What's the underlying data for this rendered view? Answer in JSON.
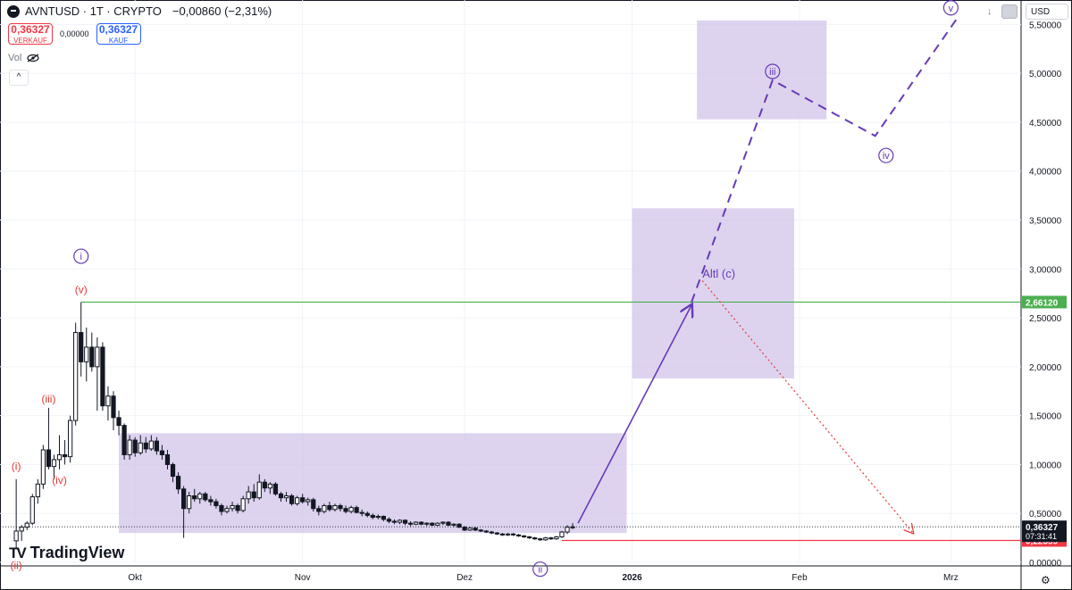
{
  "header": {
    "title": "AVNTUSD · 1T · CRYPTO",
    "change": "−0,00860 (−2,31%)",
    "sell_price": "0,36327",
    "sell_label": "VERKAUF",
    "spread": "0,00000",
    "buy_price": "0,36327",
    "buy_label": "KAUF",
    "vol_label": "Vol",
    "collapse_icon": "chevron-up-icon",
    "eye_icon": "eye-off-icon"
  },
  "toolbar": {
    "currency": "USD",
    "download_icon": "arrow-down-icon",
    "layout_icon": "square-icon",
    "settings_icon": "gear-icon"
  },
  "branding": {
    "logo_text": "TradingView"
  },
  "colors": {
    "up": "#131722",
    "down": "#131722",
    "box_fill": "#d1c4e9",
    "wave_primary": "#673ab7",
    "wave_red": "#e53935",
    "resistance": "#4caf50",
    "support": "#f23645"
  },
  "chart_data": {
    "type": "candlestick",
    "symbol": "AVNTUSD",
    "interval": "1T",
    "x_ticks": [
      "Okt",
      "Nov",
      "Dez",
      "2026",
      "Feb",
      "Mrz"
    ],
    "y_ticks": [
      "0,00000",
      "0,50000",
      "1,00000",
      "1,50000",
      "2,00000",
      "2,50000",
      "3,00000",
      "3,50000",
      "4,00000",
      "4,50000",
      "5,00000",
      "5,50000"
    ],
    "y_values": [
      0,
      0.5,
      1,
      1.5,
      2,
      2.5,
      3,
      3.5,
      4,
      4.5,
      5,
      5.5
    ],
    "ylim": [
      0,
      5.75
    ],
    "xlim": [
      "2025-09-06",
      "2026-03-14"
    ],
    "candles": [
      {
        "d": "2025-09-09",
        "o": 0.22,
        "h": 0.85,
        "l": 0.15,
        "c": 0.32
      },
      {
        "d": "2025-09-10",
        "o": 0.32,
        "h": 0.38,
        "l": 0.22,
        "c": 0.36
      },
      {
        "d": "2025-09-11",
        "o": 0.36,
        "h": 0.42,
        "l": 0.33,
        "c": 0.4
      },
      {
        "d": "2025-09-12",
        "o": 0.4,
        "h": 0.7,
        "l": 0.38,
        "c": 0.67
      },
      {
        "d": "2025-09-13",
        "o": 0.67,
        "h": 0.85,
        "l": 0.6,
        "c": 0.8
      },
      {
        "d": "2025-09-14",
        "o": 0.8,
        "h": 1.2,
        "l": 0.75,
        "c": 1.15
      },
      {
        "d": "2025-09-15",
        "o": 1.15,
        "h": 1.58,
        "l": 0.95,
        "c": 0.98
      },
      {
        "d": "2025-09-16",
        "o": 0.98,
        "h": 1.1,
        "l": 0.85,
        "c": 1.05
      },
      {
        "d": "2025-09-17",
        "o": 1.05,
        "h": 1.3,
        "l": 0.95,
        "c": 1.1
      },
      {
        "d": "2025-09-18",
        "o": 1.1,
        "h": 1.25,
        "l": 1.0,
        "c": 1.08
      },
      {
        "d": "2025-09-19",
        "o": 1.08,
        "h": 1.5,
        "l": 1.02,
        "c": 1.45
      },
      {
        "d": "2025-09-20",
        "o": 1.45,
        "h": 2.45,
        "l": 1.4,
        "c": 2.35
      },
      {
        "d": "2025-09-21",
        "o": 2.35,
        "h": 2.66,
        "l": 1.9,
        "c": 2.05
      },
      {
        "d": "2025-09-22",
        "o": 2.05,
        "h": 2.4,
        "l": 1.85,
        "c": 2.2
      },
      {
        "d": "2025-09-23",
        "o": 2.2,
        "h": 2.35,
        "l": 1.95,
        "c": 2.0
      },
      {
        "d": "2025-09-24",
        "o": 2.0,
        "h": 2.3,
        "l": 1.55,
        "c": 2.2
      },
      {
        "d": "2025-09-25",
        "o": 2.2,
        "h": 2.25,
        "l": 1.55,
        "c": 1.6
      },
      {
        "d": "2025-09-26",
        "o": 1.6,
        "h": 1.8,
        "l": 1.45,
        "c": 1.7
      },
      {
        "d": "2025-09-27",
        "o": 1.7,
        "h": 1.75,
        "l": 1.35,
        "c": 1.48
      },
      {
        "d": "2025-09-28",
        "o": 1.48,
        "h": 1.55,
        "l": 1.3,
        "c": 1.4
      },
      {
        "d": "2025-09-29",
        "o": 1.4,
        "h": 1.42,
        "l": 1.05,
        "c": 1.1
      },
      {
        "d": "2025-09-30",
        "o": 1.1,
        "h": 1.3,
        "l": 1.05,
        "c": 1.25
      },
      {
        "d": "2025-10-01",
        "o": 1.25,
        "h": 1.28,
        "l": 1.08,
        "c": 1.12
      },
      {
        "d": "2025-10-02",
        "o": 1.12,
        "h": 1.3,
        "l": 1.1,
        "c": 1.22
      },
      {
        "d": "2025-10-03",
        "o": 1.22,
        "h": 1.28,
        "l": 1.12,
        "c": 1.16
      },
      {
        "d": "2025-10-04",
        "o": 1.16,
        "h": 1.3,
        "l": 1.14,
        "c": 1.24
      },
      {
        "d": "2025-10-05",
        "o": 1.24,
        "h": 1.28,
        "l": 1.1,
        "c": 1.14
      },
      {
        "d": "2025-10-06",
        "o": 1.14,
        "h": 1.2,
        "l": 1.05,
        "c": 1.1
      },
      {
        "d": "2025-10-07",
        "o": 1.1,
        "h": 1.15,
        "l": 0.95,
        "c": 1.0
      },
      {
        "d": "2025-10-08",
        "o": 1.0,
        "h": 1.02,
        "l": 0.82,
        "c": 0.88
      },
      {
        "d": "2025-10-09",
        "o": 0.88,
        "h": 0.92,
        "l": 0.7,
        "c": 0.75
      },
      {
        "d": "2025-10-10",
        "o": 0.75,
        "h": 0.78,
        "l": 0.25,
        "c": 0.55
      },
      {
        "d": "2025-10-11",
        "o": 0.55,
        "h": 0.72,
        "l": 0.5,
        "c": 0.68
      },
      {
        "d": "2025-10-12",
        "o": 0.68,
        "h": 0.75,
        "l": 0.62,
        "c": 0.65
      },
      {
        "d": "2025-10-13",
        "o": 0.65,
        "h": 0.72,
        "l": 0.6,
        "c": 0.7
      },
      {
        "d": "2025-10-14",
        "o": 0.7,
        "h": 0.72,
        "l": 0.62,
        "c": 0.64
      },
      {
        "d": "2025-10-15",
        "o": 0.64,
        "h": 0.68,
        "l": 0.58,
        "c": 0.62
      },
      {
        "d": "2025-10-16",
        "o": 0.62,
        "h": 0.65,
        "l": 0.55,
        "c": 0.58
      },
      {
        "d": "2025-10-17",
        "o": 0.58,
        "h": 0.6,
        "l": 0.48,
        "c": 0.52
      },
      {
        "d": "2025-10-18",
        "o": 0.52,
        "h": 0.58,
        "l": 0.5,
        "c": 0.55
      },
      {
        "d": "2025-10-19",
        "o": 0.55,
        "h": 0.62,
        "l": 0.52,
        "c": 0.58
      },
      {
        "d": "2025-10-20",
        "o": 0.58,
        "h": 0.6,
        "l": 0.5,
        "c": 0.53
      },
      {
        "d": "2025-10-21",
        "o": 0.53,
        "h": 0.68,
        "l": 0.51,
        "c": 0.65
      },
      {
        "d": "2025-10-22",
        "o": 0.65,
        "h": 0.78,
        "l": 0.6,
        "c": 0.72
      },
      {
        "d": "2025-10-23",
        "o": 0.72,
        "h": 0.8,
        "l": 0.62,
        "c": 0.66
      },
      {
        "d": "2025-10-24",
        "o": 0.66,
        "h": 0.9,
        "l": 0.64,
        "c": 0.82
      },
      {
        "d": "2025-10-25",
        "o": 0.82,
        "h": 0.85,
        "l": 0.72,
        "c": 0.76
      },
      {
        "d": "2025-10-26",
        "o": 0.76,
        "h": 0.82,
        "l": 0.7,
        "c": 0.8
      },
      {
        "d": "2025-10-27",
        "o": 0.8,
        "h": 0.82,
        "l": 0.68,
        "c": 0.7
      },
      {
        "d": "2025-10-28",
        "o": 0.7,
        "h": 0.72,
        "l": 0.62,
        "c": 0.66
      },
      {
        "d": "2025-10-29",
        "o": 0.66,
        "h": 0.72,
        "l": 0.62,
        "c": 0.68
      },
      {
        "d": "2025-10-30",
        "o": 0.68,
        "h": 0.7,
        "l": 0.58,
        "c": 0.6
      },
      {
        "d": "2025-10-31",
        "o": 0.6,
        "h": 0.68,
        "l": 0.58,
        "c": 0.66
      },
      {
        "d": "2025-11-01",
        "o": 0.66,
        "h": 0.7,
        "l": 0.6,
        "c": 0.62
      },
      {
        "d": "2025-11-02",
        "o": 0.62,
        "h": 0.66,
        "l": 0.58,
        "c": 0.64
      },
      {
        "d": "2025-11-03",
        "o": 0.64,
        "h": 0.66,
        "l": 0.52,
        "c": 0.55
      },
      {
        "d": "2025-11-04",
        "o": 0.55,
        "h": 0.58,
        "l": 0.48,
        "c": 0.52
      },
      {
        "d": "2025-11-05",
        "o": 0.52,
        "h": 0.6,
        "l": 0.5,
        "c": 0.58
      },
      {
        "d": "2025-11-06",
        "o": 0.58,
        "h": 0.62,
        "l": 0.52,
        "c": 0.54
      },
      {
        "d": "2025-11-07",
        "o": 0.54,
        "h": 0.6,
        "l": 0.52,
        "c": 0.58
      },
      {
        "d": "2025-11-08",
        "o": 0.58,
        "h": 0.6,
        "l": 0.52,
        "c": 0.55
      },
      {
        "d": "2025-11-09",
        "o": 0.55,
        "h": 0.58,
        "l": 0.5,
        "c": 0.52
      },
      {
        "d": "2025-11-10",
        "o": 0.52,
        "h": 0.58,
        "l": 0.5,
        "c": 0.56
      },
      {
        "d": "2025-11-11",
        "o": 0.56,
        "h": 0.58,
        "l": 0.5,
        "c": 0.51
      },
      {
        "d": "2025-11-12",
        "o": 0.51,
        "h": 0.54,
        "l": 0.47,
        "c": 0.5
      },
      {
        "d": "2025-11-13",
        "o": 0.5,
        "h": 0.52,
        "l": 0.46,
        "c": 0.48
      },
      {
        "d": "2025-11-14",
        "o": 0.48,
        "h": 0.5,
        "l": 0.44,
        "c": 0.46
      },
      {
        "d": "2025-11-15",
        "o": 0.46,
        "h": 0.49,
        "l": 0.44,
        "c": 0.47
      },
      {
        "d": "2025-11-16",
        "o": 0.47,
        "h": 0.48,
        "l": 0.42,
        "c": 0.44
      },
      {
        "d": "2025-11-17",
        "o": 0.44,
        "h": 0.46,
        "l": 0.4,
        "c": 0.42
      },
      {
        "d": "2025-11-18",
        "o": 0.42,
        "h": 0.44,
        "l": 0.39,
        "c": 0.41
      },
      {
        "d": "2025-11-19",
        "o": 0.41,
        "h": 0.44,
        "l": 0.39,
        "c": 0.43
      },
      {
        "d": "2025-11-20",
        "o": 0.43,
        "h": 0.44,
        "l": 0.38,
        "c": 0.4
      },
      {
        "d": "2025-11-21",
        "o": 0.4,
        "h": 0.42,
        "l": 0.37,
        "c": 0.39
      },
      {
        "d": "2025-11-22",
        "o": 0.39,
        "h": 0.42,
        "l": 0.38,
        "c": 0.41
      },
      {
        "d": "2025-11-23",
        "o": 0.41,
        "h": 0.42,
        "l": 0.38,
        "c": 0.39
      },
      {
        "d": "2025-11-24",
        "o": 0.39,
        "h": 0.41,
        "l": 0.37,
        "c": 0.4
      },
      {
        "d": "2025-11-25",
        "o": 0.4,
        "h": 0.41,
        "l": 0.37,
        "c": 0.38
      },
      {
        "d": "2025-11-26",
        "o": 0.38,
        "h": 0.41,
        "l": 0.37,
        "c": 0.4
      },
      {
        "d": "2025-11-27",
        "o": 0.4,
        "h": 0.42,
        "l": 0.38,
        "c": 0.41
      },
      {
        "d": "2025-11-28",
        "o": 0.41,
        "h": 0.42,
        "l": 0.37,
        "c": 0.38
      },
      {
        "d": "2025-11-29",
        "o": 0.38,
        "h": 0.4,
        "l": 0.36,
        "c": 0.39
      },
      {
        "d": "2025-11-30",
        "o": 0.39,
        "h": 0.4,
        "l": 0.35,
        "c": 0.36
      },
      {
        "d": "2025-12-01",
        "o": 0.36,
        "h": 0.37,
        "l": 0.32,
        "c": 0.33
      },
      {
        "d": "2025-12-02",
        "o": 0.33,
        "h": 0.36,
        "l": 0.32,
        "c": 0.35
      },
      {
        "d": "2025-12-03",
        "o": 0.35,
        "h": 0.36,
        "l": 0.32,
        "c": 0.33
      },
      {
        "d": "2025-12-04",
        "o": 0.33,
        "h": 0.34,
        "l": 0.31,
        "c": 0.32
      },
      {
        "d": "2025-12-05",
        "o": 0.32,
        "h": 0.33,
        "l": 0.3,
        "c": 0.31
      },
      {
        "d": "2025-12-06",
        "o": 0.31,
        "h": 0.32,
        "l": 0.29,
        "c": 0.3
      },
      {
        "d": "2025-12-07",
        "o": 0.3,
        "h": 0.31,
        "l": 0.28,
        "c": 0.29
      },
      {
        "d": "2025-12-08",
        "o": 0.29,
        "h": 0.3,
        "l": 0.27,
        "c": 0.28
      },
      {
        "d": "2025-12-09",
        "o": 0.28,
        "h": 0.3,
        "l": 0.27,
        "c": 0.29
      },
      {
        "d": "2025-12-10",
        "o": 0.29,
        "h": 0.3,
        "l": 0.27,
        "c": 0.28
      },
      {
        "d": "2025-12-11",
        "o": 0.28,
        "h": 0.29,
        "l": 0.26,
        "c": 0.27
      },
      {
        "d": "2025-12-12",
        "o": 0.27,
        "h": 0.28,
        "l": 0.25,
        "c": 0.26
      },
      {
        "d": "2025-12-13",
        "o": 0.26,
        "h": 0.27,
        "l": 0.24,
        "c": 0.25
      },
      {
        "d": "2025-12-14",
        "o": 0.25,
        "h": 0.26,
        "l": 0.23,
        "c": 0.24
      },
      {
        "d": "2025-12-15",
        "o": 0.24,
        "h": 0.25,
        "l": 0.22,
        "c": 0.23
      },
      {
        "d": "2025-12-16",
        "o": 0.23,
        "h": 0.26,
        "l": 0.22,
        "c": 0.25
      },
      {
        "d": "2025-12-17",
        "o": 0.25,
        "h": 0.26,
        "l": 0.23,
        "c": 0.24
      },
      {
        "d": "2025-12-18",
        "o": 0.24,
        "h": 0.27,
        "l": 0.23,
        "c": 0.26
      },
      {
        "d": "2025-12-19",
        "o": 0.26,
        "h": 0.32,
        "l": 0.25,
        "c": 0.31
      },
      {
        "d": "2025-12-20",
        "o": 0.31,
        "h": 0.38,
        "l": 0.29,
        "c": 0.36
      },
      {
        "d": "2025-12-21",
        "o": 0.36,
        "h": 0.4,
        "l": 0.34,
        "c": 0.363
      }
    ],
    "wave_labels": [
      {
        "text": "(i)",
        "d": "2025-09-09",
        "y": 0.98,
        "color": "red"
      },
      {
        "text": "(ii)",
        "d": "2025-09-09",
        "y": -0.03,
        "color": "red"
      },
      {
        "text": "(iii)",
        "d": "2025-09-15",
        "y": 1.67,
        "color": "red"
      },
      {
        "text": "(iv)",
        "d": "2025-09-17",
        "y": 0.84,
        "color": "red"
      },
      {
        "text": "(v)",
        "d": "2025-09-21",
        "y": 2.79,
        "color": "red"
      },
      {
        "text": "i",
        "d": "2025-09-21",
        "y": 3.13,
        "color": "purple",
        "circle": true
      },
      {
        "text": "ii",
        "d": "2025-12-15",
        "y": -0.07,
        "color": "purple",
        "circle": true
      },
      {
        "text": "iii",
        "d": "2026-01-27",
        "y": 5.02,
        "color": "purple",
        "circle": true
      },
      {
        "text": "iv",
        "d": "2026-02-17",
        "y": 4.16,
        "color": "purple",
        "circle": true
      },
      {
        "text": "v",
        "d": "2026-03-01",
        "y": 5.67,
        "color": "purple",
        "circle": true
      }
    ],
    "alt_label": "Altl (c)",
    "alt_label_pos": {
      "d": "2026-01-14",
      "y": 2.95
    },
    "boxes": [
      {
        "d1": "2025-09-28",
        "d2": "2025-12-31",
        "y1": 0.3,
        "y2": 1.32
      },
      {
        "d1": "2026-01-01",
        "d2": "2026-01-31",
        "y1": 1.88,
        "y2": 3.62
      },
      {
        "d1": "2026-01-13",
        "d2": "2026-02-06",
        "y1": 4.53,
        "y2": 5.54
      }
    ],
    "arrow_primary": [
      {
        "d": "2025-12-22",
        "y": 0.4
      },
      {
        "d": "2026-01-12",
        "y": 2.63
      }
    ],
    "dashed_path": [
      {
        "d": "2026-01-12",
        "y": 2.66
      },
      {
        "d": "2026-01-27",
        "y": 4.93
      },
      {
        "d": "2026-02-15",
        "y": 4.36
      },
      {
        "d": "2026-03-02",
        "y": 5.55
      }
    ],
    "dotted_red": [
      {
        "d": "2026-01-14",
        "y": 2.88
      },
      {
        "d": "2026-02-22",
        "y": 0.3
      }
    ],
    "hlines": [
      {
        "y": 2.6612,
        "color": "green",
        "from": "2025-09-21",
        "label": "2,66120"
      },
      {
        "y": 0.22359,
        "color": "red",
        "from": "2025-12-19",
        "label": "0,22359"
      }
    ],
    "last_price": {
      "y": 0.36327,
      "label": "0,36327",
      "countdown": "07:31:41"
    }
  }
}
